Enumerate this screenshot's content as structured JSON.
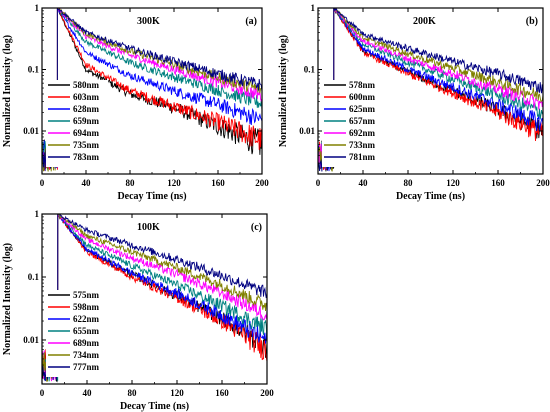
{
  "chart_data": [
    {
      "type": "line",
      "panel_label": "(a)",
      "temperature_label": "300K",
      "xlabel": "Decay Time (ns)",
      "ylabel": "Normalized Intensity (log)",
      "xlim": [
        0,
        200
      ],
      "ylim": [
        0.002,
        1
      ],
      "y_scale": "log",
      "x_ticks": [
        0,
        40,
        80,
        120,
        160,
        200
      ],
      "x_tick_labels": [
        "0",
        "40",
        "80",
        "120",
        "160",
        "200"
      ],
      "y_ticks": [
        0.01,
        0.1,
        1
      ],
      "y_tick_labels": [
        "0.01",
        "0.1",
        "1"
      ],
      "legend_position": "lower-left",
      "rise_time_ns": 14,
      "series": [
        {
          "name": "580nm",
          "color": "#000000",
          "values": [
            [
              14,
              1.0
            ],
            [
              40,
              0.1
            ],
            [
              80,
              0.04
            ],
            [
              120,
              0.024
            ],
            [
              160,
              0.012
            ],
            [
              200,
              0.006
            ]
          ]
        },
        {
          "name": "603nm",
          "color": "#ff0000",
          "values": [
            [
              14,
              1.0
            ],
            [
              40,
              0.12
            ],
            [
              80,
              0.045
            ],
            [
              120,
              0.025
            ],
            [
              160,
              0.014
            ],
            [
              200,
              0.007
            ]
          ]
        },
        {
          "name": "628nm",
          "color": "#0000ff",
          "values": [
            [
              14,
              1.0
            ],
            [
              40,
              0.19
            ],
            [
              80,
              0.08
            ],
            [
              120,
              0.045
            ],
            [
              160,
              0.027
            ],
            [
              200,
              0.015
            ]
          ]
        },
        {
          "name": "659nm",
          "color": "#008080",
          "values": [
            [
              14,
              1.0
            ],
            [
              40,
              0.28
            ],
            [
              80,
              0.13
            ],
            [
              120,
              0.075
            ],
            [
              160,
              0.046
            ],
            [
              200,
              0.028
            ]
          ]
        },
        {
          "name": "694nm",
          "color": "#ff00ff",
          "values": [
            [
              14,
              1.0
            ],
            [
              40,
              0.34
            ],
            [
              80,
              0.17
            ],
            [
              120,
              0.1
            ],
            [
              160,
              0.062
            ],
            [
              200,
              0.038
            ]
          ]
        },
        {
          "name": "735nm",
          "color": "#808000",
          "values": [
            [
              14,
              1.0
            ],
            [
              40,
              0.38
            ],
            [
              80,
              0.2
            ],
            [
              120,
              0.12
            ],
            [
              160,
              0.075
            ],
            [
              200,
              0.047
            ]
          ]
        },
        {
          "name": "783nm",
          "color": "#000080",
          "values": [
            [
              14,
              1.0
            ],
            [
              40,
              0.4
            ],
            [
              80,
              0.22
            ],
            [
              120,
              0.135
            ],
            [
              160,
              0.085
            ],
            [
              200,
              0.055
            ]
          ]
        }
      ]
    },
    {
      "type": "line",
      "panel_label": "(b)",
      "temperature_label": "200K",
      "xlabel": "Decay Time (ns)",
      "ylabel": "Normalized Intensity (log)",
      "xlim": [
        0,
        200
      ],
      "ylim": [
        0.002,
        1
      ],
      "y_scale": "log",
      "x_ticks": [
        0,
        40,
        80,
        120,
        160,
        200
      ],
      "x_tick_labels": [
        "0",
        "40",
        "80",
        "120",
        "160",
        "200"
      ],
      "y_ticks": [
        0.01,
        0.1,
        1
      ],
      "y_tick_labels": [
        "0.01",
        "0.1",
        "1"
      ],
      "legend_position": "lower-left",
      "rise_time_ns": 14,
      "series": [
        {
          "name": "578nm",
          "color": "#000000",
          "values": [
            [
              14,
              1.0
            ],
            [
              40,
              0.2
            ],
            [
              80,
              0.09
            ],
            [
              120,
              0.045
            ],
            [
              160,
              0.022
            ],
            [
              200,
              0.01
            ]
          ]
        },
        {
          "name": "600nm",
          "color": "#ff0000",
          "values": [
            [
              14,
              1.0
            ],
            [
              40,
              0.19
            ],
            [
              80,
              0.085
            ],
            [
              120,
              0.042
            ],
            [
              160,
              0.02
            ],
            [
              200,
              0.009
            ]
          ]
        },
        {
          "name": "625nm",
          "color": "#0000ff",
          "values": [
            [
              14,
              1.0
            ],
            [
              40,
              0.22
            ],
            [
              80,
              0.1
            ],
            [
              120,
              0.052
            ],
            [
              160,
              0.027
            ],
            [
              200,
              0.013
            ]
          ]
        },
        {
          "name": "657nm",
          "color": "#008080",
          "values": [
            [
              14,
              1.0
            ],
            [
              40,
              0.26
            ],
            [
              80,
              0.13
            ],
            [
              120,
              0.07
            ],
            [
              160,
              0.038
            ],
            [
              200,
              0.02
            ]
          ]
        },
        {
          "name": "692nm",
          "color": "#ff00ff",
          "values": [
            [
              14,
              1.0
            ],
            [
              40,
              0.29
            ],
            [
              80,
              0.15
            ],
            [
              120,
              0.085
            ],
            [
              160,
              0.048
            ],
            [
              200,
              0.027
            ]
          ]
        },
        {
          "name": "733nm",
          "color": "#808000",
          "values": [
            [
              14,
              1.0
            ],
            [
              40,
              0.33
            ],
            [
              80,
              0.18
            ],
            [
              120,
              0.105
            ],
            [
              160,
              0.062
            ],
            [
              200,
              0.036
            ]
          ]
        },
        {
          "name": "781nm",
          "color": "#000080",
          "values": [
            [
              14,
              1.0
            ],
            [
              40,
              0.38
            ],
            [
              80,
              0.22
            ],
            [
              120,
              0.135
            ],
            [
              160,
              0.085
            ],
            [
              200,
              0.05
            ]
          ]
        }
      ]
    },
    {
      "type": "line",
      "panel_label": "(c)",
      "temperature_label": "100K",
      "xlabel": "Decay Time (ns)",
      "ylabel": "Normalized Intensity (log)",
      "xlim": [
        0,
        200
      ],
      "ylim": [
        0.002,
        1
      ],
      "y_scale": "log",
      "x_ticks": [
        0,
        40,
        80,
        120,
        160,
        200
      ],
      "x_tick_labels": [
        "0",
        "40",
        "80",
        "120",
        "160",
        "200"
      ],
      "y_ticks": [
        0.01,
        0.1,
        1
      ],
      "y_tick_labels": [
        "0.01",
        "0.1",
        "1"
      ],
      "legend_position": "lower-left",
      "rise_time_ns": 14,
      "series": [
        {
          "name": "575nm",
          "color": "#000000",
          "values": [
            [
              14,
              1.0
            ],
            [
              40,
              0.26
            ],
            [
              80,
              0.11
            ],
            [
              120,
              0.05
            ],
            [
              160,
              0.022
            ],
            [
              200,
              0.008
            ]
          ]
        },
        {
          "name": "598nm",
          "color": "#ff0000",
          "values": [
            [
              14,
              1.0
            ],
            [
              40,
              0.25
            ],
            [
              80,
              0.1
            ],
            [
              120,
              0.047
            ],
            [
              160,
              0.02
            ],
            [
              200,
              0.007
            ]
          ]
        },
        {
          "name": "622nm",
          "color": "#0000ff",
          "values": [
            [
              14,
              1.0
            ],
            [
              40,
              0.27
            ],
            [
              80,
              0.115
            ],
            [
              120,
              0.055
            ],
            [
              160,
              0.025
            ],
            [
              200,
              0.01
            ]
          ]
        },
        {
          "name": "655nm",
          "color": "#008080",
          "values": [
            [
              14,
              1.0
            ],
            [
              40,
              0.32
            ],
            [
              80,
              0.15
            ],
            [
              120,
              0.075
            ],
            [
              160,
              0.035
            ],
            [
              200,
              0.015
            ]
          ]
        },
        {
          "name": "689nm",
          "color": "#ff00ff",
          "values": [
            [
              14,
              1.0
            ],
            [
              40,
              0.39
            ],
            [
              80,
              0.2
            ],
            [
              120,
              0.11
            ],
            [
              160,
              0.055
            ],
            [
              200,
              0.025
            ]
          ]
        },
        {
          "name": "734nm",
          "color": "#808000",
          "values": [
            [
              14,
              1.0
            ],
            [
              40,
              0.45
            ],
            [
              80,
              0.25
            ],
            [
              120,
              0.14
            ],
            [
              160,
              0.075
            ],
            [
              200,
              0.035
            ]
          ]
        },
        {
          "name": "777nm",
          "color": "#000080",
          "values": [
            [
              14,
              1.0
            ],
            [
              40,
              0.55
            ],
            [
              80,
              0.32
            ],
            [
              120,
              0.19
            ],
            [
              160,
              0.105
            ],
            [
              200,
              0.055
            ]
          ]
        }
      ]
    }
  ]
}
